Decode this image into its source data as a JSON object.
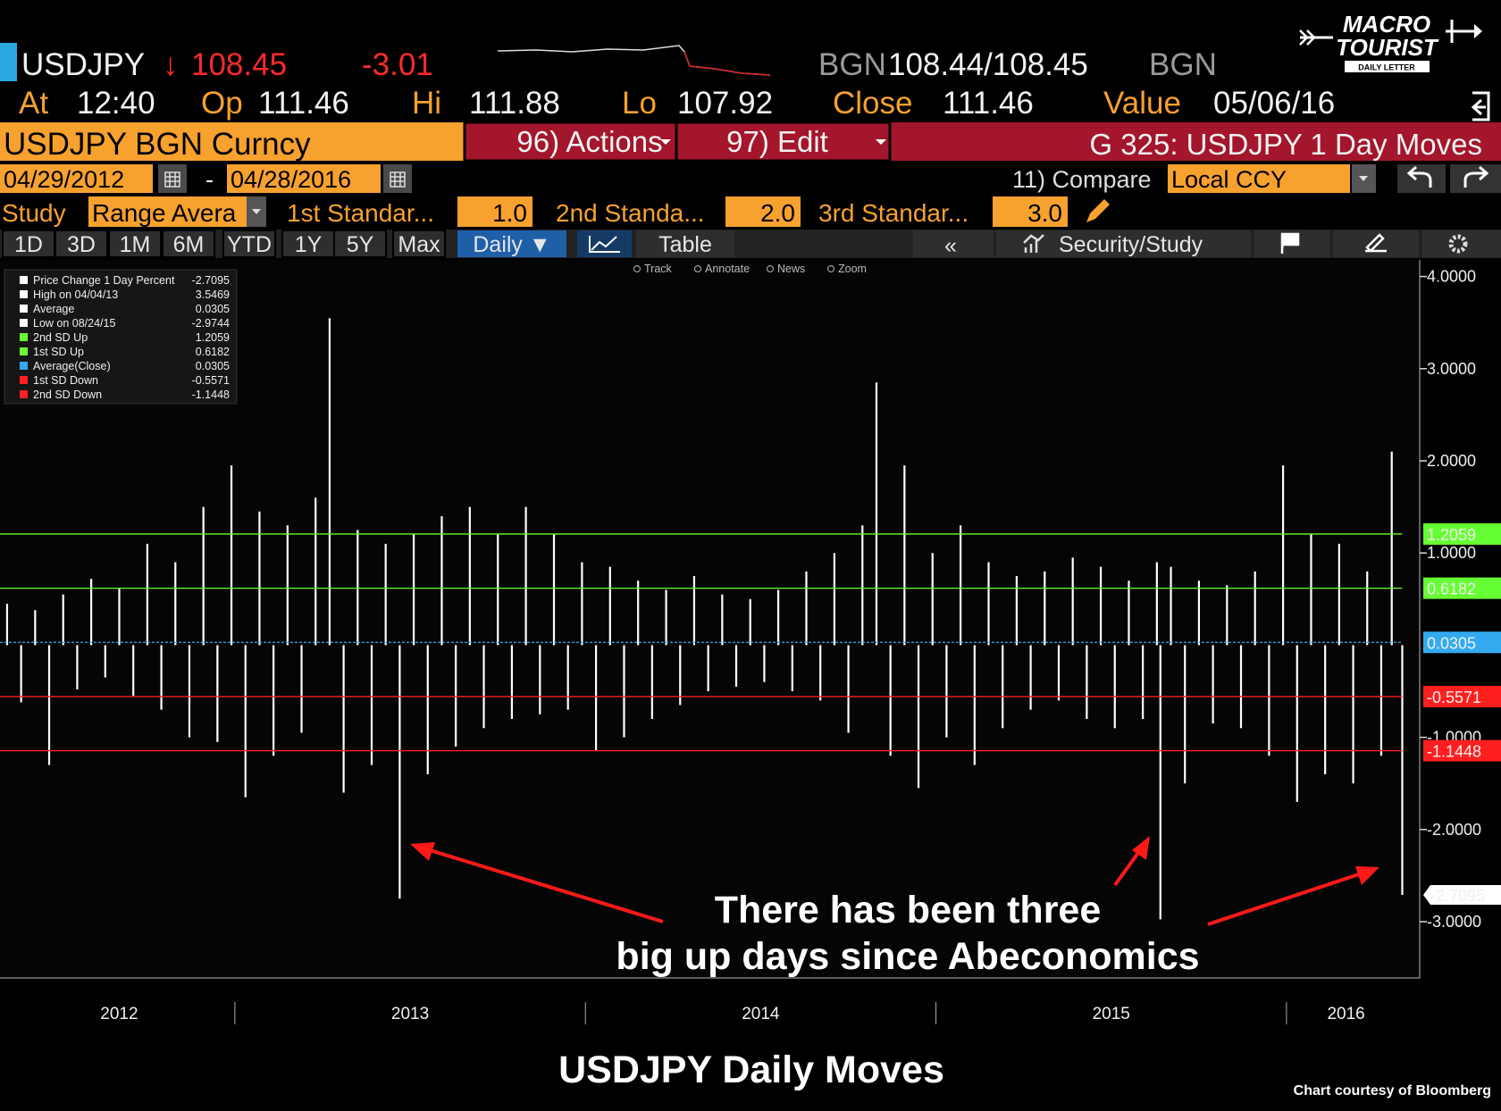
{
  "terminal": {
    "ticker": "USDJPY",
    "arrow": "↓",
    "last": "108.45",
    "change": "-3.01",
    "quote": {
      "source": "BGN",
      "bid_ask": "108.44/108.45",
      "source_end": "BGN"
    },
    "stats": [
      {
        "label": "At",
        "value": "12:40"
      },
      {
        "label": "Op",
        "value": "111.46"
      },
      {
        "label": "Hi",
        "value": "111.88"
      },
      {
        "label": "Lo",
        "value": "107.92"
      },
      {
        "label": "Close",
        "value": "111.46"
      },
      {
        "label": "Value",
        "value": "05/06/16"
      }
    ],
    "security": "USDJPY BGN Curncy",
    "actions": "96) Actions",
    "edit": "97) Edit",
    "function": "G 325: USDJPY 1 Day Moves",
    "date_from": "04/29/2012",
    "date_sep": "-",
    "date_to": "04/28/2016",
    "compare": "11) Compare",
    "currency": "Local CCY",
    "study_label": "Study",
    "study": "Range Avera",
    "sd": [
      {
        "label": "1st Standar...",
        "value": "1.0"
      },
      {
        "label": "2nd Standa...",
        "value": "2.0"
      },
      {
        "label": "3rd Standar...",
        "value": "3.0"
      }
    ],
    "tabs": [
      "1D",
      "3D",
      "1M",
      "6M",
      "YTD",
      "1Y",
      "5Y",
      "Max"
    ],
    "period": "Daily ▼",
    "table": "Table",
    "back": "«",
    "security_study": "Security/Study",
    "tools": [
      "Track",
      "Annotate",
      "News",
      "Zoom"
    ]
  },
  "logo": {
    "line1": "MACRO",
    "line2": "TOURIST",
    "line3": "DAILY LETTER"
  },
  "chart_data": {
    "type": "bar",
    "color": "#ffffff",
    "x": [
      2012.35,
      2012.39,
      2012.43,
      2012.47,
      2012.51,
      2012.55,
      2012.59,
      2012.63,
      2012.67,
      2012.71,
      2012.75,
      2012.79,
      2012.83,
      2012.87,
      2012.91,
      2012.95,
      2012.99,
      2013.03,
      2013.07,
      2013.11,
      2013.15,
      2013.19,
      2013.23,
      2013.27,
      2013.31,
      2013.35,
      2013.39,
      2013.43,
      2013.47,
      2013.51,
      2013.55,
      2013.59,
      2013.63,
      2013.67,
      2013.71,
      2013.75,
      2013.79,
      2013.83,
      2013.87,
      2013.91,
      2013.95,
      2013.99,
      2014.03,
      2014.07,
      2014.11,
      2014.15,
      2014.19,
      2014.23,
      2014.27,
      2014.31,
      2014.35,
      2014.39,
      2014.43,
      2014.47,
      2014.51,
      2014.55,
      2014.59,
      2014.63,
      2014.67,
      2014.71,
      2014.75,
      2014.79,
      2014.83,
      2014.87,
      2014.91,
      2014.95,
      2014.99,
      2015.03,
      2015.07,
      2015.11,
      2015.15,
      2015.19,
      2015.23,
      2015.27,
      2015.31,
      2015.35,
      2015.39,
      2015.43,
      2015.47,
      2015.51,
      2015.55,
      2015.59,
      2015.63,
      2015.64,
      2015.67,
      2015.71,
      2015.75,
      2015.79,
      2015.83,
      2015.87,
      2015.91,
      2015.95,
      2015.99,
      2016.03,
      2016.07,
      2016.11,
      2016.15,
      2016.19,
      2016.23,
      2016.27,
      2016.3,
      2016.33
    ],
    "values": [
      0.45,
      -0.62,
      0.38,
      -1.3,
      0.55,
      -0.48,
      0.72,
      -0.35,
      0.62,
      -0.55,
      1.1,
      -0.7,
      0.9,
      -1.0,
      1.5,
      -1.05,
      1.95,
      -1.65,
      1.45,
      -1.2,
      1.3,
      -0.95,
      1.6,
      3.5469,
      -1.6,
      1.25,
      -1.3,
      1.1,
      -2.75,
      1.2,
      -1.4,
      1.4,
      -1.1,
      1.5,
      -0.9,
      1.2,
      -0.8,
      1.5,
      -0.75,
      1.2,
      -0.7,
      0.9,
      -1.15,
      0.85,
      -1.0,
      0.7,
      -0.8,
      0.6,
      -0.65,
      0.75,
      -0.5,
      0.55,
      -0.45,
      0.5,
      -0.4,
      0.6,
      -0.5,
      0.8,
      -0.6,
      1.0,
      -0.95,
      1.3,
      2.85,
      -1.2,
      1.95,
      -1.55,
      1.0,
      -1.0,
      1.3,
      -1.3,
      0.9,
      -0.9,
      0.75,
      -0.7,
      0.8,
      -0.6,
      0.95,
      -0.8,
      0.85,
      -0.9,
      0.7,
      -0.8,
      0.9,
      -2.9744,
      0.85,
      -1.5,
      0.7,
      -0.85,
      0.65,
      -0.9,
      0.8,
      -1.2,
      1.95,
      -1.7,
      1.2,
      -1.4,
      1.1,
      -1.5,
      0.8,
      -1.2,
      2.1,
      -2.7095
    ],
    "xlim": [
      2012.33,
      2016.38
    ],
    "xticks": [
      {
        "value": 2012.67,
        "label": "2012"
      },
      {
        "value": 2013.5,
        "label": "2013"
      },
      {
        "value": 2014.5,
        "label": "2014"
      },
      {
        "value": 2015.5,
        "label": "2015"
      },
      {
        "value": 2016.17,
        "label": "2016"
      }
    ],
    "x_separators": [
      2013,
      2014,
      2015,
      2016
    ],
    "ylim": [
      -3.61,
      4.18
    ],
    "yticks": [
      {
        "value": 4,
        "label": "4.0000"
      },
      {
        "value": 3,
        "label": "3.0000"
      },
      {
        "value": 2,
        "label": "2.0000"
      },
      {
        "value": 1,
        "label": "1.0000"
      },
      {
        "value": -1,
        "label": "-1.0000"
      },
      {
        "value": -2,
        "label": "-2.0000"
      },
      {
        "value": -3,
        "label": "-3.0000"
      }
    ],
    "stats": [
      {
        "label": "Price Change 1 Day Percent",
        "value": -2.7095
      },
      {
        "label": "High on 04/04/13",
        "value": 3.5469
      },
      {
        "label": "Average",
        "value": 0.0305
      },
      {
        "label": "Low on 08/24/15",
        "value": -2.9744
      }
    ],
    "ref_lines": [
      {
        "label": "2nd SD Up",
        "value": 1.2059,
        "color": "#66ff33"
      },
      {
        "label": "1st SD Up",
        "value": 0.6182,
        "color": "#66ff33"
      },
      {
        "label": "Average(Close)",
        "value": 0.0305,
        "color": "#33aaf0"
      },
      {
        "label": "1st SD Down",
        "value": -0.5571,
        "color": "#ff1f1f"
      },
      {
        "label": "2nd SD Down",
        "value": -1.1448,
        "color": "#ff1f1f"
      }
    ]
  },
  "annotation": [
    "There has been three",
    "big up days since Abeconomics"
  ],
  "caption": "USDJPY Daily Moves",
  "credit": "Chart courtesy of Bloomberg"
}
